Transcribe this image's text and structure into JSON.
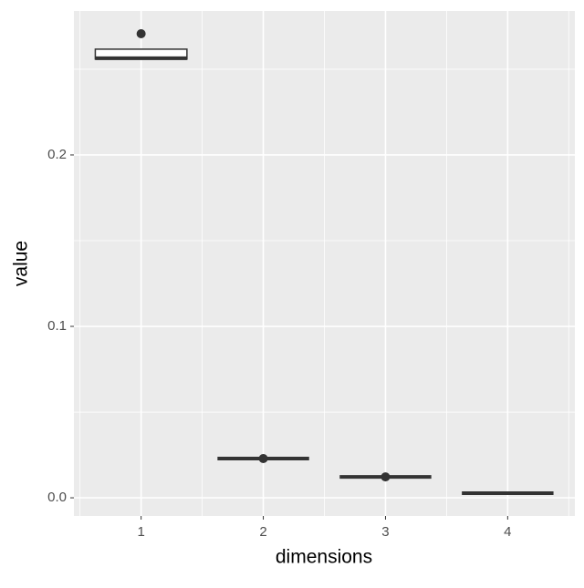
{
  "chart_data": {
    "type": "box",
    "x_label": "dimensions",
    "y_label": "value",
    "categories": [
      "1",
      "2",
      "3",
      "4"
    ],
    "boxes": [
      {
        "low": 0.2559,
        "q1": 0.2559,
        "median": 0.2564,
        "q3": 0.2617,
        "high": 0.2617,
        "outliers": [
          0.2707
        ]
      },
      {
        "low": 0.0229,
        "q1": 0.0229,
        "median": 0.0229,
        "q3": 0.0229,
        "high": 0.0229,
        "outliers": [
          0.0229
        ]
      },
      {
        "low": 0.0122,
        "q1": 0.0122,
        "median": 0.0122,
        "q3": 0.0122,
        "high": 0.0122,
        "outliers": [
          0.0122
        ]
      },
      {
        "low": 0.0027,
        "q1": 0.0027,
        "median": 0.0027,
        "q3": 0.0027,
        "high": 0.0027,
        "outliers": []
      }
    ],
    "color": "#333333",
    "ylim": [
      -0.0106,
      0.284
    ],
    "yticks": [
      {
        "value": 0,
        "label": "0.0"
      },
      0.1,
      0.2
    ],
    "minor_yticks": [
      0.05,
      0.15,
      0.25
    ],
    "grid": true
  }
}
